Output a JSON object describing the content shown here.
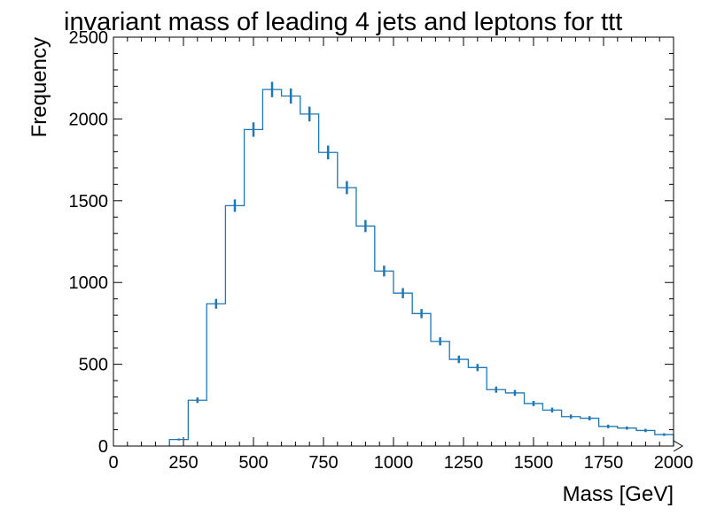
{
  "chart_data": {
    "type": "histogram",
    "title": "invariant mass of leading 4 jets and leptons for ttt",
    "xlabel": "Mass [GeV]",
    "ylabel": "Frequency",
    "xlim": [
      0,
      2000
    ],
    "ylim": [
      0,
      2500
    ],
    "x_ticks": [
      0,
      250,
      500,
      750,
      1000,
      1250,
      1500,
      1750,
      2000
    ],
    "y_ticks": [
      0,
      500,
      1000,
      1500,
      2000,
      2500
    ],
    "grid": false,
    "legend": "none",
    "color": "#1f77b4",
    "bin_edges": [
      200,
      267,
      333,
      400,
      467,
      533,
      600,
      667,
      733,
      800,
      867,
      933,
      1000,
      1067,
      1133,
      1200,
      1267,
      1333,
      1400,
      1467,
      1533,
      1600,
      1667,
      1733,
      1800,
      1867,
      1933,
      2000
    ],
    "values": [
      40,
      280,
      870,
      1470,
      1935,
      2180,
      2140,
      2030,
      1795,
      1580,
      1345,
      1070,
      935,
      810,
      640,
      530,
      480,
      345,
      325,
      260,
      220,
      180,
      170,
      120,
      110,
      95,
      70
    ],
    "errors": [
      6,
      17,
      30,
      38,
      44,
      47,
      46,
      45,
      42,
      40,
      37,
      33,
      31,
      28,
      25,
      23,
      22,
      19,
      18,
      16,
      15,
      13,
      13,
      11,
      10,
      10,
      8
    ]
  }
}
